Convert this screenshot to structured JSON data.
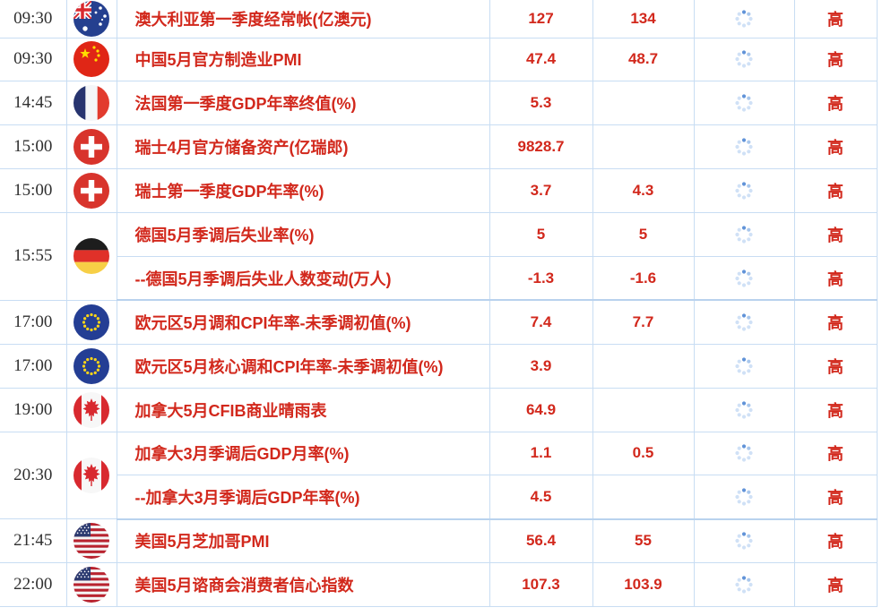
{
  "table": {
    "importance_label_high": "高",
    "colors": {
      "accent_red": "#d2281c",
      "time_text": "#2f2f2f",
      "grid_border": "#c8ddf3",
      "spinner_active": "#6193d8",
      "spinner_inactive": "#d0e1f6"
    },
    "icons": {
      "chart_cell_icon": "loading-spinner-icon",
      "flag_icons": [
        "flag-australia-icon",
        "flag-china-icon",
        "flag-france-icon",
        "flag-switzerland-icon",
        "flag-germany-icon",
        "flag-eu-icon",
        "flag-canada-icon",
        "flag-usa-icon"
      ]
    },
    "groups": [
      {
        "time": "09:30",
        "country": "australia",
        "rows": [
          {
            "event": "澳大利亚第一季度经常帐(亿澳元)",
            "actual": "127",
            "forecast": "134",
            "importance": "高"
          }
        ]
      },
      {
        "time": "09:30",
        "country": "china",
        "rows": [
          {
            "event": "中国5月官方制造业PMI",
            "actual": "47.4",
            "forecast": "48.7",
            "importance": "高"
          }
        ]
      },
      {
        "time": "14:45",
        "country": "france",
        "rows": [
          {
            "event": "法国第一季度GDP年率终值(%)",
            "actual": "5.3",
            "forecast": "",
            "importance": "高"
          }
        ]
      },
      {
        "time": "15:00",
        "country": "switzerland",
        "rows": [
          {
            "event": "瑞士4月官方储备资产(亿瑞郎)",
            "actual": "9828.7",
            "forecast": "",
            "importance": "高"
          }
        ]
      },
      {
        "time": "15:00",
        "country": "switzerland",
        "rows": [
          {
            "event": "瑞士第一季度GDP年率(%)",
            "actual": "3.7",
            "forecast": "4.3",
            "importance": "高"
          }
        ]
      },
      {
        "time": "15:55",
        "country": "germany",
        "rows": [
          {
            "event": "德国5月季调后失业率(%)",
            "actual": "5",
            "forecast": "5",
            "importance": "高"
          },
          {
            "event": "--德国5月季调后失业人数变动(万人)",
            "actual": "-1.3",
            "forecast": "-1.6",
            "importance": "高"
          }
        ]
      },
      {
        "time": "17:00",
        "country": "eu",
        "rows": [
          {
            "event": "欧元区5月调和CPI年率-未季调初值(%)",
            "actual": "7.4",
            "forecast": "7.7",
            "importance": "高"
          }
        ]
      },
      {
        "time": "17:00",
        "country": "eu",
        "rows": [
          {
            "event": "欧元区5月核心调和CPI年率-未季调初值(%)",
            "actual": "3.9",
            "forecast": "",
            "importance": "高"
          }
        ]
      },
      {
        "time": "19:00",
        "country": "canada",
        "rows": [
          {
            "event": "加拿大5月CFIB商业晴雨表",
            "actual": "64.9",
            "forecast": "",
            "importance": "高"
          }
        ]
      },
      {
        "time": "20:30",
        "country": "canada",
        "rows": [
          {
            "event": "加拿大3月季调后GDP月率(%)",
            "actual": "1.1",
            "forecast": "0.5",
            "importance": "高"
          },
          {
            "event": "--加拿大3月季调后GDP年率(%)",
            "actual": "4.5",
            "forecast": "",
            "importance": "高"
          }
        ]
      },
      {
        "time": "21:45",
        "country": "usa",
        "rows": [
          {
            "event": "美国5月芝加哥PMI",
            "actual": "56.4",
            "forecast": "55",
            "importance": "高"
          }
        ]
      },
      {
        "time": "22:00",
        "country": "usa",
        "rows": [
          {
            "event": "美国5月谘商会消费者信心指数",
            "actual": "107.3",
            "forecast": "103.9",
            "importance": "高"
          }
        ]
      }
    ]
  }
}
